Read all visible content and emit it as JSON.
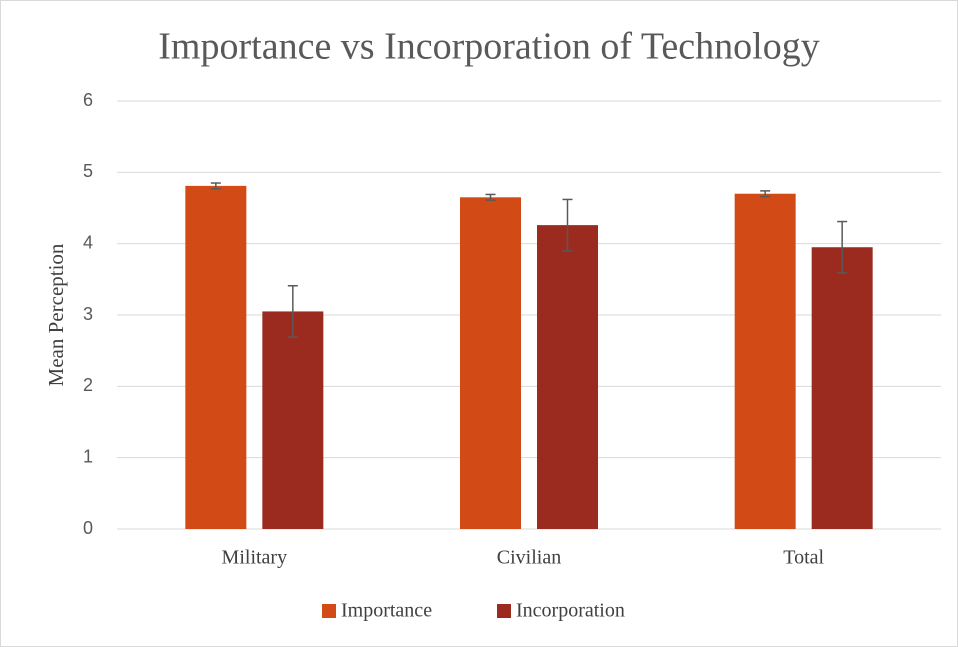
{
  "chart_data": {
    "type": "bar",
    "title": "Importance vs Incorporation of Technology",
    "y_label": "Mean Perception",
    "categories": [
      "Military",
      "Civilian",
      "Total"
    ],
    "series": [
      {
        "name": "Importance",
        "color": "#d24a16",
        "values": [
          4.81,
          4.65,
          4.7
        ],
        "errors": [
          0.04,
          0.04,
          0.04
        ]
      },
      {
        "name": "Incorporation",
        "color": "#9b2b1e",
        "values": [
          3.05,
          4.26,
          3.95
        ],
        "errors": [
          0.36,
          0.36,
          0.36
        ]
      }
    ],
    "ylim": [
      0,
      6
    ],
    "yticks": [
      0,
      1,
      2,
      3,
      4,
      5,
      6
    ],
    "grid": true,
    "legend": "bottom"
  }
}
